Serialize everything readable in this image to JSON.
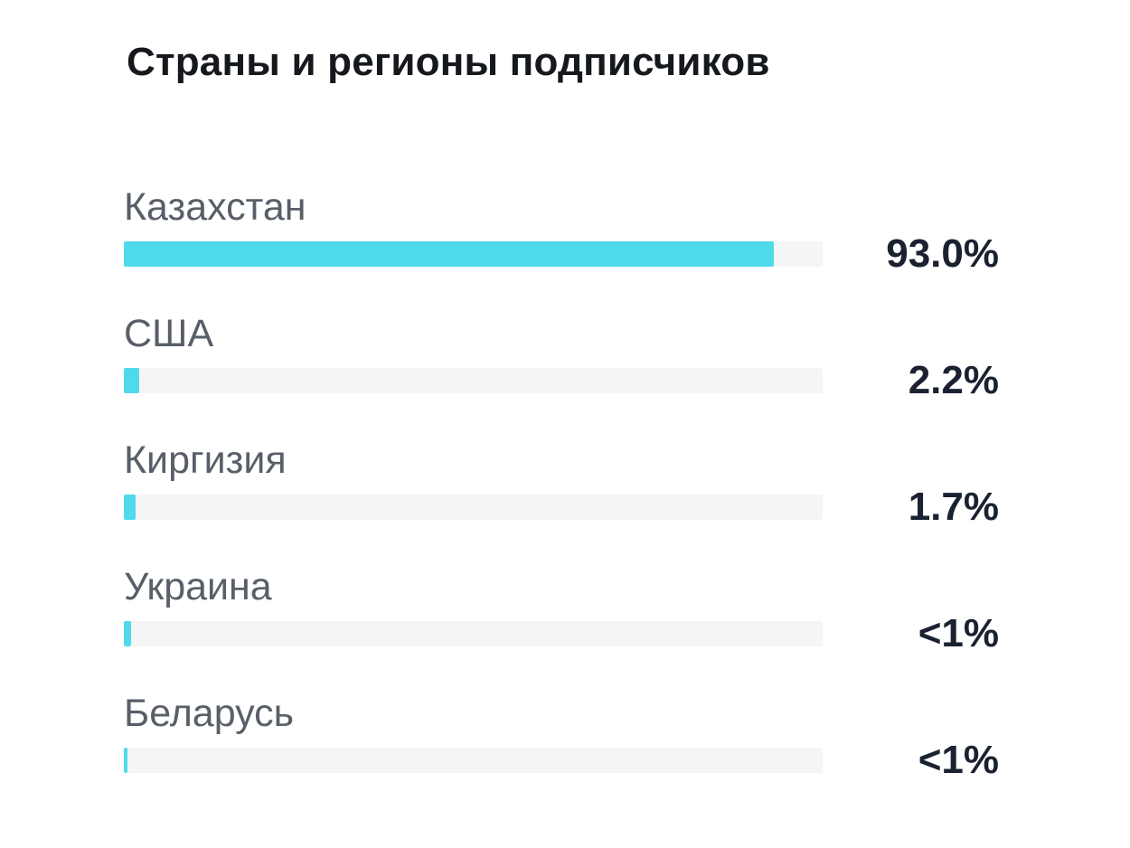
{
  "chart_data": {
    "type": "bar",
    "orientation": "horizontal",
    "title": "Страны и регионы подписчиков",
    "xlabel": "",
    "ylabel": "",
    "unit": "%",
    "xlim": [
      0,
      100
    ],
    "grid": false,
    "legend": false,
    "categories": [
      "Казахстан",
      "США",
      "Киргизия",
      "Украина",
      "Беларусь"
    ],
    "values": [
      93.0,
      2.2,
      1.7,
      1.0,
      0.5
    ],
    "value_labels": [
      "93.0%",
      "2.2%",
      "1.7%",
      "<1%",
      "<1%"
    ],
    "colors": {
      "bar_fill": "#4EDAEA",
      "bar_track": "#F4F5F6",
      "category_label": "#585F68",
      "value_label": "#1A2130",
      "title": "#15181D",
      "background": "#FFFFFF"
    }
  }
}
